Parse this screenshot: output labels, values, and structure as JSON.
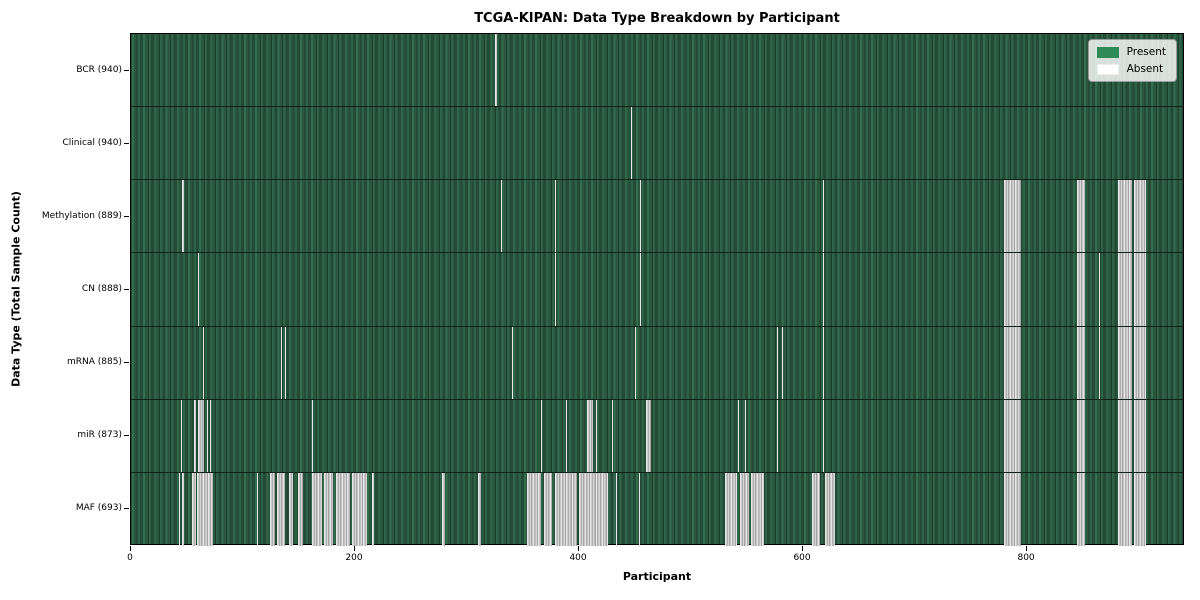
{
  "chart_data": {
    "type": "heatmap",
    "title": "TCGA-KIPAN: Data Type Breakdown by Participant",
    "xlabel": "Participant",
    "ylabel": "Data Type (Total Sample Count)",
    "x_ticks": [
      0,
      200,
      400,
      600,
      800
    ],
    "x_range": [
      0,
      941
    ],
    "n_participants": 941,
    "grid": false,
    "legend_position": "upper right",
    "legend": [
      "Present",
      "Absent"
    ],
    "colors": {
      "present": "#2e8b57",
      "absent": "#ffffff",
      "plot_present_fill": "#2a5940",
      "absent_fill": "#c4c4c4"
    },
    "rows": [
      {
        "label": "BCR",
        "count": 940,
        "display": "BCR (940)",
        "absent_ranges": [
          [
            326,
            327
          ]
        ]
      },
      {
        "label": "Clinical",
        "count": 940,
        "display": "Clinical (940)",
        "absent_ranges": [
          [
            447,
            448
          ]
        ]
      },
      {
        "label": "Methylation",
        "count": 889,
        "display": "Methylation (889)",
        "absent_ranges": [
          [
            46,
            47
          ],
          [
            331,
            332
          ],
          [
            379,
            380
          ],
          [
            455,
            456
          ],
          [
            619,
            620
          ],
          [
            781,
            796
          ],
          [
            846,
            853
          ],
          [
            883,
            895
          ],
          [
            897,
            908
          ]
        ]
      },
      {
        "label": "CN",
        "count": 888,
        "display": "CN (888)",
        "absent_ranges": [
          [
            60,
            61
          ],
          [
            379,
            380
          ],
          [
            455,
            456
          ],
          [
            619,
            620
          ],
          [
            781,
            796
          ],
          [
            846,
            853
          ],
          [
            866,
            867
          ],
          [
            883,
            895
          ],
          [
            897,
            908
          ]
        ]
      },
      {
        "label": "mRNA",
        "count": 885,
        "display": "mRNA (885)",
        "absent_ranges": [
          [
            64,
            65
          ],
          [
            134,
            135
          ],
          [
            138,
            139
          ],
          [
            341,
            342
          ],
          [
            451,
            452
          ],
          [
            578,
            579
          ],
          [
            582,
            583
          ],
          [
            619,
            620
          ],
          [
            781,
            796
          ],
          [
            846,
            853
          ],
          [
            866,
            867
          ],
          [
            883,
            895
          ],
          [
            897,
            908
          ]
        ]
      },
      {
        "label": "miR",
        "count": 873,
        "display": "miR (873)",
        "absent_ranges": [
          [
            45,
            46
          ],
          [
            56,
            58
          ],
          [
            60,
            65
          ],
          [
            68,
            69
          ],
          [
            71,
            72
          ],
          [
            162,
            163
          ],
          [
            367,
            368
          ],
          [
            389,
            390
          ],
          [
            408,
            413
          ],
          [
            416,
            417
          ],
          [
            430,
            431
          ],
          [
            461,
            465
          ],
          [
            543,
            544
          ],
          [
            549,
            550
          ],
          [
            578,
            579
          ],
          [
            619,
            620
          ],
          [
            781,
            796
          ],
          [
            846,
            853
          ],
          [
            883,
            895
          ],
          [
            897,
            908
          ]
        ]
      },
      {
        "label": "MAF",
        "count": 693,
        "display": "MAF (693)",
        "absent_ranges": [
          [
            43,
            44
          ],
          [
            46,
            47
          ],
          [
            55,
            58
          ],
          [
            59,
            73
          ],
          [
            113,
            114
          ],
          [
            124,
            129
          ],
          [
            131,
            138
          ],
          [
            141,
            145
          ],
          [
            149,
            154
          ],
          [
            162,
            171
          ],
          [
            173,
            181
          ],
          [
            183,
            196
          ],
          [
            198,
            211
          ],
          [
            216,
            217
          ],
          [
            278,
            281
          ],
          [
            310,
            313
          ],
          [
            354,
            367
          ],
          [
            369,
            377
          ],
          [
            379,
            399
          ],
          [
            401,
            427
          ],
          [
            434,
            435
          ],
          [
            454,
            455
          ],
          [
            531,
            542
          ],
          [
            545,
            553
          ],
          [
            555,
            566
          ],
          [
            609,
            616
          ],
          [
            621,
            630
          ],
          [
            781,
            796
          ],
          [
            846,
            853
          ],
          [
            883,
            895
          ],
          [
            897,
            908
          ]
        ]
      }
    ]
  }
}
